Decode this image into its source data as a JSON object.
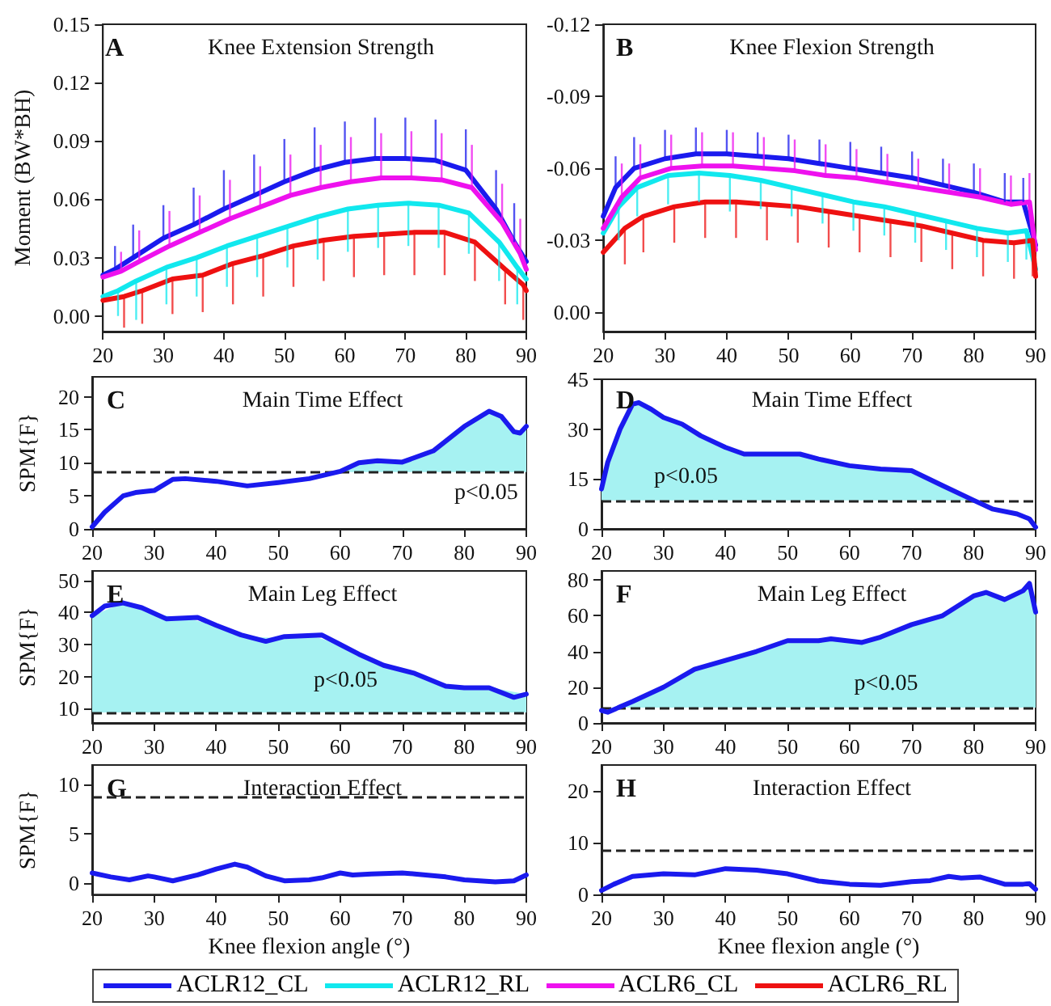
{
  "chart_data": [
    {
      "type": "line",
      "title": "Knee Extension Strength",
      "ylabel": "Moment (BW*BH)",
      "annotations": [
        "A"
      ],
      "legend": "bottom",
      "xlim": [
        20,
        90
      ],
      "xticks": [
        20,
        30,
        40,
        50,
        60,
        70,
        80,
        90
      ],
      "ylim": [
        -0.008,
        0.15
      ],
      "yticks": [
        {
          "value": 0,
          "label": "0.00"
        },
        0.03,
        0.06,
        0.09,
        0.12,
        0.15
      ],
      "x": [
        20,
        22,
        25,
        30,
        35,
        40,
        45,
        50,
        55,
        60,
        65,
        70,
        75,
        80,
        85,
        88,
        90
      ],
      "series": [
        {
          "name": "ACLR12_CL",
          "color": "#1a1aee",
          "values": [
            0.021,
            0.024,
            0.03,
            0.04,
            0.047,
            0.055,
            0.062,
            0.069,
            0.075,
            0.079,
            0.081,
            0.081,
            0.08,
            0.075,
            0.055,
            0.038,
            0.028
          ],
          "errors": [
            null,
            [
              0.024,
              0.036
            ],
            [
              0.03,
              0.047
            ],
            [
              0.04,
              0.057
            ],
            [
              0.047,
              0.066
            ],
            [
              0.055,
              0.075
            ],
            [
              0.062,
              0.083
            ],
            [
              0.069,
              0.091
            ],
            [
              0.075,
              0.097
            ],
            [
              0.079,
              0.1
            ],
            [
              0.081,
              0.102
            ],
            [
              0.081,
              0.102
            ],
            [
              0.08,
              0.101
            ],
            [
              0.075,
              0.096
            ],
            [
              0.055,
              0.075
            ],
            [
              0.038,
              0.058
            ],
            null
          ]
        },
        {
          "name": "ACLR12_RL",
          "color": "#11e8ee",
          "x": [
            20,
            22.5,
            25.5,
            30.5,
            35.5,
            40.5,
            45.5,
            50.5,
            55.5,
            60.5,
            65.5,
            70.5,
            75.5,
            80.5,
            85.5,
            88.5,
            90
          ],
          "values": [
            0.01,
            0.013,
            0.018,
            0.025,
            0.03,
            0.036,
            0.041,
            0.046,
            0.051,
            0.055,
            0.057,
            0.058,
            0.057,
            0.053,
            0.038,
            0.025,
            0.019
          ],
          "errors": [
            null,
            [
              0.0,
              0.013
            ],
            [
              -0.002,
              0.018
            ],
            [
              0.006,
              0.025
            ],
            [
              0.01,
              0.03
            ],
            [
              0.015,
              0.036
            ],
            [
              0.02,
              0.041
            ],
            [
              0.025,
              0.046
            ],
            [
              0.029,
              0.051
            ],
            [
              0.033,
              0.055
            ],
            [
              0.035,
              0.057
            ],
            [
              0.036,
              0.058
            ],
            [
              0.035,
              0.057
            ],
            [
              0.032,
              0.053
            ],
            [
              0.018,
              0.038
            ],
            [
              0.006,
              0.025
            ],
            null
          ]
        },
        {
          "name": "ACLR6_CL",
          "color": "#ee11ee",
          "x": [
            20,
            23,
            26,
            31,
            36,
            41,
            46,
            51,
            56,
            61,
            66,
            71,
            76,
            81,
            86,
            89,
            90
          ],
          "values": [
            0.02,
            0.023,
            0.028,
            0.036,
            0.043,
            0.05,
            0.056,
            0.062,
            0.066,
            0.069,
            0.071,
            0.071,
            0.07,
            0.066,
            0.048,
            0.032,
            0.024
          ],
          "errors": [
            null,
            [
              0.023,
              0.033
            ],
            [
              0.028,
              0.044
            ],
            [
              0.036,
              0.054
            ],
            [
              0.043,
              0.062
            ],
            [
              0.05,
              0.07
            ],
            [
              0.056,
              0.077
            ],
            [
              0.062,
              0.083
            ],
            [
              0.066,
              0.088
            ],
            [
              0.069,
              0.092
            ],
            [
              0.071,
              0.094
            ],
            [
              0.071,
              0.095
            ],
            [
              0.07,
              0.094
            ],
            [
              0.066,
              0.088
            ],
            [
              0.048,
              0.068
            ],
            [
              0.032,
              0.05
            ],
            null
          ]
        },
        {
          "name": "ACLR6_RL",
          "color": "#ee1111",
          "x": [
            20,
            23.5,
            26.5,
            31.5,
            36.5,
            41.5,
            46.5,
            51.5,
            56.5,
            61.5,
            66.5,
            71.5,
            76.5,
            81.5,
            86.5,
            89.5,
            90
          ],
          "values": [
            0.008,
            0.01,
            0.013,
            0.019,
            0.021,
            0.027,
            0.031,
            0.036,
            0.039,
            0.041,
            0.042,
            0.043,
            0.043,
            0.038,
            0.024,
            0.016,
            0.013
          ],
          "errors": [
            null,
            [
              -0.006,
              0.01
            ],
            [
              -0.004,
              0.013
            ],
            [
              0.001,
              0.019
            ],
            [
              0.002,
              0.021
            ],
            [
              0.006,
              0.027
            ],
            [
              0.01,
              0.031
            ],
            [
              0.015,
              0.036
            ],
            [
              0.018,
              0.039
            ],
            [
              0.02,
              0.041
            ],
            [
              0.021,
              0.042
            ],
            [
              0.021,
              0.043
            ],
            [
              0.021,
              0.043
            ],
            [
              0.018,
              0.038
            ],
            [
              0.006,
              0.024
            ],
            [
              -0.002,
              0.016
            ],
            null
          ]
        }
      ]
    },
    {
      "type": "line",
      "title": "Knee Flexion Strength",
      "annotations": [
        "B"
      ],
      "xlim": [
        20,
        90
      ],
      "xticks": [
        20,
        30,
        40,
        50,
        60,
        70,
        80,
        90
      ],
      "ylim": [
        0.008,
        -0.12
      ],
      "yticks": [
        {
          "value": 0,
          "label": "0.00"
        },
        -0.03,
        -0.06,
        -0.09,
        -0.12
      ],
      "x": [
        20,
        22,
        25,
        30,
        35,
        40,
        45,
        50,
        55,
        60,
        65,
        70,
        75,
        80,
        85,
        88,
        90
      ],
      "series": [
        {
          "color": "#1a1aee",
          "values": [
            -0.04,
            -0.052,
            -0.06,
            -0.064,
            -0.066,
            -0.066,
            -0.065,
            -0.064,
            -0.062,
            -0.06,
            -0.058,
            -0.056,
            -0.053,
            -0.05,
            -0.046,
            -0.046,
            -0.028
          ],
          "errors": [
            null,
            [
              -0.065,
              -0.052
            ],
            [
              -0.073,
              -0.06
            ],
            [
              -0.076,
              -0.064
            ],
            [
              -0.077,
              -0.066
            ],
            [
              -0.076,
              -0.066
            ],
            [
              -0.075,
              -0.065
            ],
            [
              -0.074,
              -0.064
            ],
            [
              -0.072,
              -0.062
            ],
            [
              -0.071,
              -0.06
            ],
            [
              -0.069,
              -0.058
            ],
            [
              -0.067,
              -0.056
            ],
            [
              -0.064,
              -0.053
            ],
            [
              -0.062,
              -0.05
            ],
            [
              -0.058,
              -0.046
            ],
            [
              -0.056,
              -0.046
            ],
            null
          ]
        },
        {
          "color": "#11e8ee",
          "x": [
            20,
            22.5,
            25.5,
            30.5,
            35.5,
            40.5,
            45.5,
            50.5,
            55.5,
            60.5,
            65.5,
            70.5,
            75.5,
            80.5,
            85.5,
            88.5,
            90
          ],
          "values": [
            -0.033,
            -0.044,
            -0.052,
            -0.057,
            -0.058,
            -0.057,
            -0.055,
            -0.052,
            -0.049,
            -0.046,
            -0.044,
            -0.041,
            -0.038,
            -0.035,
            -0.033,
            -0.034,
            -0.018
          ],
          "errors": [
            null,
            [
              -0.044,
              -0.03
            ],
            [
              -0.052,
              -0.04
            ],
            [
              -0.057,
              -0.045
            ],
            [
              -0.058,
              -0.046
            ],
            [
              -0.057,
              -0.042
            ],
            [
              -0.055,
              -0.043
            ],
            [
              -0.052,
              -0.04
            ],
            [
              -0.049,
              -0.037
            ],
            [
              -0.046,
              -0.034
            ],
            [
              -0.044,
              -0.032
            ],
            [
              -0.041,
              -0.029
            ],
            [
              -0.038,
              -0.026
            ],
            [
              -0.035,
              -0.023
            ],
            [
              -0.033,
              -0.021
            ],
            [
              -0.034,
              -0.022
            ],
            null
          ]
        },
        {
          "color": "#ee11ee",
          "x": [
            20,
            23,
            26,
            31,
            36,
            41,
            46,
            51,
            56,
            61,
            66,
            71,
            76,
            81,
            86,
            89,
            90
          ],
          "values": [
            -0.035,
            -0.048,
            -0.056,
            -0.06,
            -0.061,
            -0.061,
            -0.06,
            -0.059,
            -0.057,
            -0.056,
            -0.054,
            -0.052,
            -0.05,
            -0.048,
            -0.045,
            -0.046,
            -0.026
          ],
          "errors": [
            null,
            [
              -0.062,
              -0.048
            ],
            [
              -0.07,
              -0.056
            ],
            [
              -0.074,
              -0.06
            ],
            [
              -0.075,
              -0.061
            ],
            [
              -0.075,
              -0.061
            ],
            [
              -0.073,
              -0.06
            ],
            [
              -0.072,
              -0.059
            ],
            [
              -0.07,
              -0.057
            ],
            [
              -0.068,
              -0.056
            ],
            [
              -0.066,
              -0.054
            ],
            [
              -0.064,
              -0.052
            ],
            [
              -0.062,
              -0.05
            ],
            [
              -0.06,
              -0.048
            ],
            [
              -0.057,
              -0.045
            ],
            [
              -0.058,
              -0.046
            ],
            null
          ]
        },
        {
          "color": "#ee1111",
          "x": [
            20,
            23.5,
            26.5,
            31.5,
            36.5,
            41.5,
            46.5,
            51.5,
            56.5,
            61.5,
            66.5,
            71.5,
            76.5,
            81.5,
            86.5,
            89.5,
            90
          ],
          "values": [
            -0.025,
            -0.035,
            -0.04,
            -0.044,
            -0.046,
            -0.046,
            -0.045,
            -0.044,
            -0.042,
            -0.04,
            -0.038,
            -0.036,
            -0.033,
            -0.03,
            -0.029,
            -0.03,
            -0.015
          ],
          "errors": [
            null,
            [
              -0.035,
              -0.02
            ],
            [
              -0.04,
              -0.025
            ],
            [
              -0.044,
              -0.029
            ],
            [
              -0.046,
              -0.031
            ],
            [
              -0.046,
              -0.031
            ],
            [
              -0.045,
              -0.03
            ],
            [
              -0.044,
              -0.029
            ],
            [
              -0.042,
              -0.027
            ],
            [
              -0.04,
              -0.025
            ],
            [
              -0.038,
              -0.023
            ],
            [
              -0.036,
              -0.021
            ],
            [
              -0.033,
              -0.018
            ],
            [
              -0.03,
              -0.015
            ],
            [
              -0.029,
              -0.014
            ],
            [
              -0.03,
              -0.015
            ],
            null
          ]
        }
      ]
    },
    {
      "type": "line",
      "title": "Main Time Effect",
      "ylabel": "SPM{F}",
      "annotations": [
        "C",
        "p<0.05"
      ],
      "xlim": [
        20,
        90
      ],
      "xticks": [
        20,
        30,
        40,
        50,
        60,
        70,
        80,
        90
      ],
      "ylim": [
        0,
        23
      ],
      "yticks": [
        0,
        5,
        10,
        15,
        20
      ],
      "ref_lines": [
        {
          "axis": "y",
          "value": 8.6,
          "color": "#222222",
          "line_style": "dashed"
        }
      ],
      "x": [
        20,
        22,
        25,
        27,
        30,
        33,
        35,
        40,
        45,
        50,
        55,
        60,
        63,
        66,
        70,
        75,
        80,
        84,
        86,
        88,
        89,
        90
      ],
      "series": [
        {
          "type": "area",
          "color": "#a6f2f2",
          "x": [
            59.5,
            60,
            63,
            66,
            70,
            75,
            80,
            84,
            86,
            88,
            89,
            90
          ],
          "values": [
            8.6,
            8.7,
            10,
            10.3,
            10.1,
            11.8,
            15.5,
            17.8,
            17,
            14.7,
            14.5,
            15.5
          ]
        },
        {
          "color": "#1a1aee",
          "values": [
            0.3,
            2.5,
            5,
            5.5,
            5.8,
            7.5,
            7.6,
            7.2,
            6.5,
            7,
            7.6,
            8.7,
            10,
            10.3,
            10.1,
            11.8,
            15.5,
            17.8,
            17,
            14.7,
            14.5,
            15.5
          ]
        }
      ]
    },
    {
      "type": "line",
      "title": "Main Time Effect",
      "annotations": [
        "D",
        "p<0.05"
      ],
      "xlim": [
        20,
        90
      ],
      "xticks": [
        20,
        30,
        40,
        50,
        60,
        70,
        80,
        90
      ],
      "ylim": [
        0,
        45
      ],
      "yticks": [
        0,
        15,
        30,
        45
      ],
      "ref_lines": [
        {
          "axis": "y",
          "value": 8.6,
          "color": "#222222",
          "line_style": "dashed"
        }
      ],
      "x": [
        20,
        21,
        23,
        25,
        26,
        28,
        30,
        33,
        36,
        40,
        43,
        47,
        52,
        55,
        60,
        65,
        70,
        75,
        80,
        83,
        87,
        89,
        90
      ],
      "series": [
        {
          "type": "area",
          "color": "#a6f2f2",
          "x": [
            20,
            21,
            23,
            25,
            26,
            28,
            30,
            33,
            36,
            40,
            43,
            47,
            52,
            55,
            60,
            65,
            70,
            75,
            80
          ],
          "values": [
            12,
            20,
            30,
            37.5,
            38,
            36,
            33.5,
            31.5,
            28,
            24.5,
            22.5,
            22.5,
            22.5,
            21,
            19,
            18,
            17.5,
            13,
            8.6
          ]
        },
        {
          "color": "#1a1aee",
          "values": [
            12,
            20,
            30,
            37.5,
            38,
            36,
            33.5,
            31.5,
            28,
            24.5,
            22.5,
            22.5,
            22.5,
            21,
            19,
            18,
            17.5,
            13,
            8.6,
            6,
            4.5,
            3,
            0.5
          ]
        }
      ]
    },
    {
      "type": "line",
      "title": "Main Leg Effect",
      "ylabel": "SPM{F}",
      "annotations": [
        "E",
        "p<0.05"
      ],
      "xlim": [
        20,
        90
      ],
      "xticks": [
        20,
        30,
        40,
        50,
        60,
        70,
        80,
        90
      ],
      "ylim": [
        5.5,
        53
      ],
      "yticks": [
        10,
        20,
        30,
        40,
        50
      ],
      "ref_lines": [
        {
          "axis": "y",
          "value": 8.8,
          "color": "#222222",
          "line_style": "dashed"
        }
      ],
      "x": [
        20,
        22,
        25,
        28,
        32,
        37,
        40,
        44,
        48,
        51,
        57,
        60,
        63,
        67,
        72,
        77,
        80,
        84,
        88,
        90
      ],
      "series": [
        {
          "type": "area",
          "color": "#a6f2f2",
          "x": [
            20,
            25,
            30,
            35,
            40,
            45,
            50,
            55,
            60,
            65,
            70,
            75,
            80,
            85,
            90
          ],
          "values": [
            39,
            43,
            39.5,
            38.3,
            36,
            32.5,
            32,
            33,
            30,
            25.5,
            22,
            18.5,
            16.5,
            16.3,
            14.5
          ]
        },
        {
          "color": "#1a1aee",
          "values": [
            39,
            42,
            43,
            41.5,
            38,
            38.5,
            36,
            33,
            31,
            32.5,
            33,
            30,
            27,
            23.5,
            21,
            17,
            16.5,
            16.5,
            13.5,
            14.5
          ]
        }
      ]
    },
    {
      "type": "line",
      "title": "Main Leg Effect",
      "annotations": [
        "F",
        "p<0.05"
      ],
      "xlim": [
        20,
        90
      ],
      "xticks": [
        20,
        30,
        40,
        50,
        60,
        70,
        80,
        90
      ],
      "ylim": [
        0,
        85
      ],
      "yticks": [
        0,
        20,
        40,
        60,
        80
      ],
      "ref_lines": [
        {
          "axis": "y",
          "value": 8.6,
          "color": "#222222",
          "line_style": "dashed"
        }
      ],
      "x": [
        20,
        21,
        23,
        25,
        30,
        35,
        40,
        45,
        50,
        55,
        57,
        62,
        65,
        70,
        75,
        80,
        82,
        85,
        88,
        89,
        90
      ],
      "series": [
        {
          "type": "area",
          "color": "#a6f2f2",
          "x": [
            22,
            23,
            25,
            30,
            35,
            40,
            45,
            50,
            55,
            57,
            62,
            65,
            70,
            75,
            80,
            82,
            85,
            88,
            89,
            90
          ],
          "values": [
            9,
            9,
            12,
            20,
            30,
            35,
            40,
            46,
            46,
            47,
            45,
            48,
            55,
            60,
            71,
            73,
            69,
            74,
            78,
            62
          ]
        },
        {
          "color": "#1a1aee",
          "values": [
            7,
            6,
            9,
            12,
            20,
            30,
            35,
            40,
            46,
            46,
            47,
            45,
            48,
            55,
            60,
            71,
            73,
            69,
            74,
            78,
            62
          ]
        }
      ]
    },
    {
      "type": "line",
      "title": "Interaction Effect",
      "ylabel": "SPM{F}",
      "xlabel": "Knee flexion angle (°)",
      "annotations": [
        "G"
      ],
      "xlim": [
        20,
        90
      ],
      "xticks": [
        20,
        30,
        40,
        50,
        60,
        70,
        80,
        90
      ],
      "ylim": [
        -1.2,
        12
      ],
      "yticks": [
        0,
        5,
        10
      ],
      "ref_lines": [
        {
          "axis": "y",
          "value": 8.7,
          "color": "#222222",
          "line_style": "dashed"
        }
      ],
      "x": [
        20,
        23,
        26,
        29,
        30,
        33,
        37,
        40,
        43,
        45,
        48,
        51,
        55,
        57,
        60,
        62,
        65,
        70,
        72,
        77,
        80,
        85,
        88,
        90
      ],
      "series": [
        {
          "color": "#1a1aee",
          "values": [
            1,
            0.6,
            0.3,
            0.7,
            0.6,
            0.2,
            0.8,
            1.4,
            1.9,
            1.6,
            0.7,
            0.2,
            0.3,
            0.5,
            1,
            0.8,
            0.9,
            1,
            0.9,
            0.6,
            0.3,
            0.1,
            0.2,
            0.8
          ]
        }
      ]
    },
    {
      "type": "line",
      "title": "Interaction Effect",
      "xlabel": "Knee flexion angle (°)",
      "annotations": [
        "H"
      ],
      "xlim": [
        20,
        90
      ],
      "xticks": [
        20,
        30,
        40,
        50,
        60,
        70,
        80,
        90
      ],
      "ylim": [
        0,
        25
      ],
      "yticks": [
        0,
        10,
        20
      ],
      "ref_lines": [
        {
          "axis": "y",
          "value": 8.6,
          "color": "#222222",
          "line_style": "dashed"
        }
      ],
      "x": [
        20,
        22,
        25,
        30,
        35,
        40,
        45,
        50,
        55,
        60,
        65,
        70,
        73,
        76,
        78,
        81,
        85,
        88,
        89,
        90
      ],
      "series": [
        {
          "color": "#1a1aee",
          "values": [
            0.8,
            2,
            3.5,
            4,
            3.8,
            5,
            4.7,
            4,
            2.6,
            2,
            1.8,
            2.5,
            2.7,
            3.5,
            3.2,
            3.4,
            2,
            2,
            2.1,
            1
          ]
        }
      ]
    }
  ]
}
